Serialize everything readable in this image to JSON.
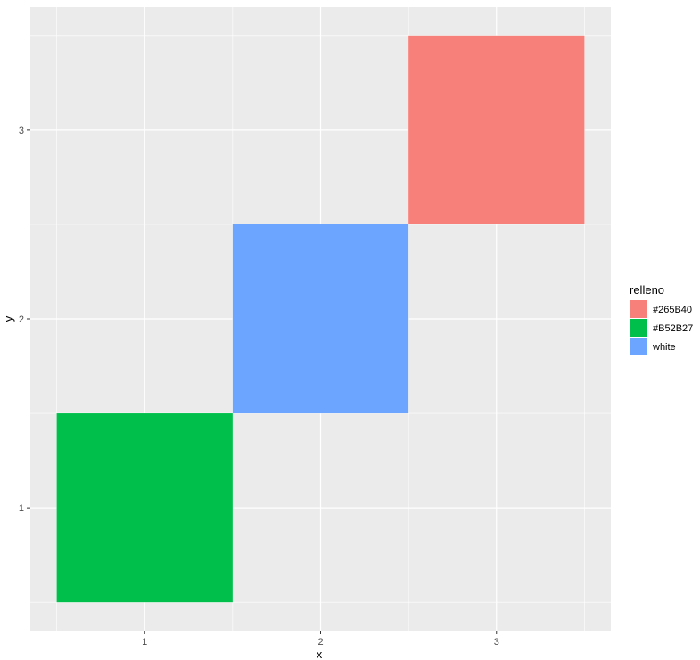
{
  "chart_data": {
    "type": "heatmap",
    "xlabel": "x",
    "ylabel": "y",
    "xlim": [
      0.35,
      3.65
    ],
    "ylim": [
      0.35,
      3.65
    ],
    "x_ticks": [
      "1",
      "2",
      "3"
    ],
    "y_ticks": [
      "1",
      "2",
      "3"
    ],
    "x_tick_values": [
      1,
      2,
      3
    ],
    "y_tick_values": [
      1,
      2,
      3
    ],
    "grid": true,
    "panel_background": "#EBEBEB",
    "grid_color": "#FFFFFF",
    "tiles": [
      {
        "x": 1,
        "y": 1,
        "fill": "#B52B27",
        "color": "#00C04B"
      },
      {
        "x": 2,
        "y": 2,
        "fill": "white",
        "color": "#6BA5FF"
      },
      {
        "x": 3,
        "y": 3,
        "fill": "#265B40",
        "color": "#F8807A"
      }
    ],
    "legend": {
      "title": "relleno",
      "position": "right",
      "entries": [
        {
          "label": "#265B40",
          "color": "#F8807A"
        },
        {
          "label": "#B52B27",
          "color": "#00C04B"
        },
        {
          "label": "white",
          "color": "#6BA5FF"
        }
      ]
    }
  }
}
